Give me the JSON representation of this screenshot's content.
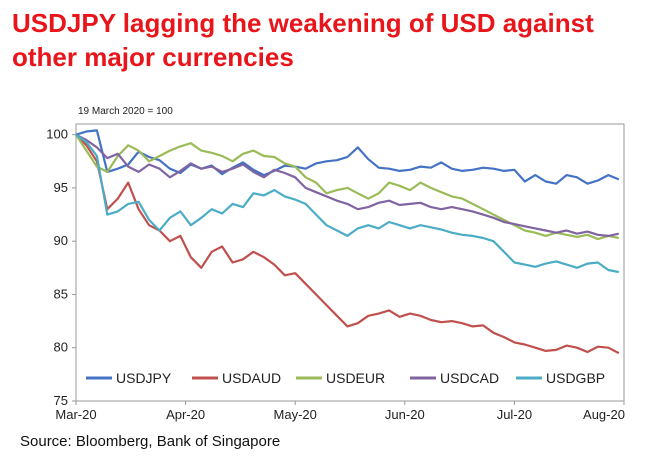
{
  "title_lines": [
    "USDJPY lagging the weakening of USD against",
    "other major currencies"
  ],
  "source": "Source: Bloomberg, Bank of Singapore",
  "chart_data": {
    "type": "line",
    "subtitle": "19 March 2020 = 100",
    "x_tick_labels": [
      "Mar-20",
      "Apr-20",
      "May-20",
      "Jun-20",
      "Jul-20",
      "Aug-20"
    ],
    "y_ticks": [
      75,
      80,
      85,
      90,
      95,
      100
    ],
    "ylim": [
      75,
      101
    ],
    "xlim": [
      0,
      104
    ],
    "x_tick_positions": [
      0,
      21,
      42,
      63,
      84,
      105
    ],
    "grid": false,
    "legend_position": "bottom-inside",
    "series": [
      {
        "name": "USDJPY",
        "color": "#4472c4",
        "x": [
          0,
          2,
          4,
          6,
          8,
          10,
          12,
          14,
          16,
          18,
          20,
          22,
          24,
          26,
          28,
          30,
          32,
          34,
          36,
          38,
          40,
          42,
          44,
          46,
          48,
          50,
          52,
          54,
          56,
          58,
          60,
          62,
          64,
          66,
          68,
          70,
          72,
          74,
          76,
          78,
          80,
          82,
          84,
          86,
          88,
          90,
          92,
          94,
          96,
          98,
          100,
          102,
          104
        ],
        "values": [
          100,
          100.3,
          100.4,
          96.5,
          96.8,
          97.2,
          98.4,
          97.9,
          97.6,
          96.8,
          96.4,
          97.2,
          96.8,
          97.1,
          96.3,
          96.9,
          97.4,
          96.7,
          96.2,
          96.6,
          97.1,
          97.0,
          96.8,
          97.3,
          97.5,
          97.6,
          97.9,
          98.8,
          97.7,
          96.9,
          96.8,
          96.6,
          96.7,
          97.0,
          96.9,
          97.4,
          96.8,
          96.6,
          96.7,
          96.9,
          96.8,
          96.6,
          96.7,
          95.6,
          96.2,
          95.6,
          95.4,
          96.2,
          96.0,
          95.4,
          95.7,
          96.2,
          95.8
        ]
      },
      {
        "name": "USDAUD",
        "color": "#c0504d",
        "x": [
          0,
          2,
          4,
          6,
          8,
          10,
          12,
          14,
          16,
          18,
          20,
          22,
          24,
          26,
          28,
          30,
          32,
          34,
          36,
          38,
          40,
          42,
          44,
          46,
          48,
          50,
          52,
          54,
          56,
          58,
          60,
          62,
          64,
          66,
          68,
          70,
          72,
          74,
          76,
          78,
          80,
          82,
          84,
          86,
          88,
          90,
          92,
          94,
          96,
          98,
          100,
          102,
          104
        ],
        "values": [
          100,
          99.0,
          97.5,
          93.0,
          94.0,
          95.5,
          93.0,
          91.5,
          91.0,
          90.0,
          90.5,
          88.5,
          87.5,
          89.0,
          89.5,
          88.0,
          88.3,
          89.0,
          88.5,
          87.8,
          86.8,
          87.0,
          86.0,
          85.0,
          84.0,
          83.0,
          82.0,
          82.3,
          83.0,
          83.2,
          83.5,
          82.9,
          83.2,
          83.0,
          82.6,
          82.4,
          82.5,
          82.3,
          82.0,
          82.1,
          81.4,
          81.0,
          80.5,
          80.3,
          80.0,
          79.7,
          79.8,
          80.2,
          80.0,
          79.6,
          80.1,
          80.0,
          79.5
        ]
      },
      {
        "name": "USDEUR",
        "color": "#9bbb59",
        "x": [
          0,
          2,
          4,
          6,
          8,
          10,
          12,
          14,
          16,
          18,
          20,
          22,
          24,
          26,
          28,
          30,
          32,
          34,
          36,
          38,
          40,
          42,
          44,
          46,
          48,
          50,
          52,
          54,
          56,
          58,
          60,
          62,
          64,
          66,
          68,
          70,
          72,
          74,
          76,
          78,
          80,
          82,
          84,
          86,
          88,
          90,
          92,
          94,
          96,
          98,
          100,
          102,
          104
        ],
        "values": [
          100,
          98.5,
          97.0,
          96.5,
          98.0,
          99.0,
          98.5,
          97.5,
          98.0,
          98.5,
          98.9,
          99.2,
          98.5,
          98.3,
          98.0,
          97.5,
          98.2,
          98.5,
          98.0,
          97.9,
          97.3,
          97.0,
          96.0,
          95.5,
          94.5,
          94.8,
          95.0,
          94.5,
          94.0,
          94.5,
          95.5,
          95.2,
          94.8,
          95.5,
          95.0,
          94.6,
          94.2,
          94.0,
          93.5,
          93.0,
          92.5,
          92.0,
          91.5,
          91.0,
          90.8,
          90.5,
          90.8,
          90.6,
          90.4,
          90.6,
          90.2,
          90.5,
          90.3
        ]
      },
      {
        "name": "USDCAD",
        "color": "#8064a2",
        "x": [
          0,
          2,
          4,
          6,
          8,
          10,
          12,
          14,
          16,
          18,
          20,
          22,
          24,
          26,
          28,
          30,
          32,
          34,
          36,
          38,
          40,
          42,
          44,
          46,
          48,
          50,
          52,
          54,
          56,
          58,
          60,
          62,
          64,
          66,
          68,
          70,
          72,
          74,
          76,
          78,
          80,
          82,
          84,
          86,
          88,
          90,
          92,
          94,
          96,
          98,
          100,
          102,
          104
        ],
        "values": [
          100,
          99.5,
          98.8,
          97.8,
          98.2,
          97.0,
          96.5,
          97.2,
          96.8,
          96.0,
          96.6,
          97.3,
          96.8,
          97.0,
          96.5,
          96.8,
          97.2,
          96.5,
          96.0,
          96.7,
          96.4,
          96.0,
          95.0,
          94.6,
          94.2,
          93.8,
          93.5,
          93.0,
          93.2,
          93.6,
          93.8,
          93.4,
          93.5,
          93.6,
          93.2,
          93.0,
          93.2,
          93.0,
          92.8,
          92.5,
          92.2,
          91.8,
          91.6,
          91.4,
          91.2,
          91.0,
          90.8,
          91.0,
          90.7,
          90.9,
          90.6,
          90.5,
          90.7
        ]
      },
      {
        "name": "USDGBP",
        "color": "#4bacc6",
        "x": [
          0,
          2,
          4,
          6,
          8,
          10,
          12,
          14,
          16,
          18,
          20,
          22,
          24,
          26,
          28,
          30,
          32,
          34,
          36,
          38,
          40,
          42,
          44,
          46,
          48,
          50,
          52,
          54,
          56,
          58,
          60,
          62,
          64,
          66,
          68,
          70,
          72,
          74,
          76,
          78,
          80,
          82,
          84,
          86,
          88,
          90,
          92,
          94,
          96,
          98,
          100,
          102,
          104
        ],
        "values": [
          100,
          99.3,
          98.0,
          92.5,
          92.8,
          93.5,
          93.7,
          92.0,
          91.0,
          92.2,
          92.8,
          91.5,
          92.2,
          93.0,
          92.6,
          93.5,
          93.2,
          94.5,
          94.3,
          94.8,
          94.2,
          93.9,
          93.5,
          92.5,
          91.5,
          91.0,
          90.5,
          91.2,
          91.5,
          91.2,
          91.8,
          91.5,
          91.2,
          91.5,
          91.3,
          91.1,
          90.8,
          90.6,
          90.5,
          90.3,
          90.0,
          89.0,
          88.0,
          87.8,
          87.6,
          87.9,
          88.1,
          87.8,
          87.5,
          87.9,
          88.0,
          87.3,
          87.1
        ]
      }
    ]
  }
}
